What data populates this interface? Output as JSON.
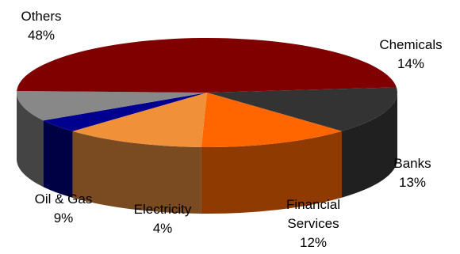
{
  "chart_data": {
    "type": "pie",
    "style": "3d",
    "legend": "none",
    "slices": [
      {
        "label": "Chemicals",
        "label_lines": [
          "Chemicals"
        ],
        "value": 14,
        "value_text": "14%",
        "color": "#333333",
        "side_color": "#202020"
      },
      {
        "label": "Banks",
        "label_lines": [
          "Banks"
        ],
        "value": 13,
        "value_text": "13%",
        "color": "#ff6600",
        "side_color": "#8f3a00"
      },
      {
        "label": "Financial Services",
        "label_lines": [
          "Financial",
          "Services"
        ],
        "value": 12,
        "value_text": "12%",
        "color": "#f0913a",
        "side_color": "#7a4a20"
      },
      {
        "label": "Electricity",
        "label_lines": [
          "Electricity"
        ],
        "value": 4,
        "value_text": "4%",
        "color": "#000090",
        "side_color": "#000045"
      },
      {
        "label": "Oil & Gas",
        "label_lines": [
          "Oil & Gas"
        ],
        "value": 9,
        "value_text": "9%",
        "color": "#888888",
        "side_color": "#444444"
      },
      {
        "label": "Others",
        "label_lines": [
          "Others"
        ],
        "value": 48,
        "value_text": "48%",
        "color": "#800000",
        "side_color": "#4a0000"
      }
    ]
  }
}
